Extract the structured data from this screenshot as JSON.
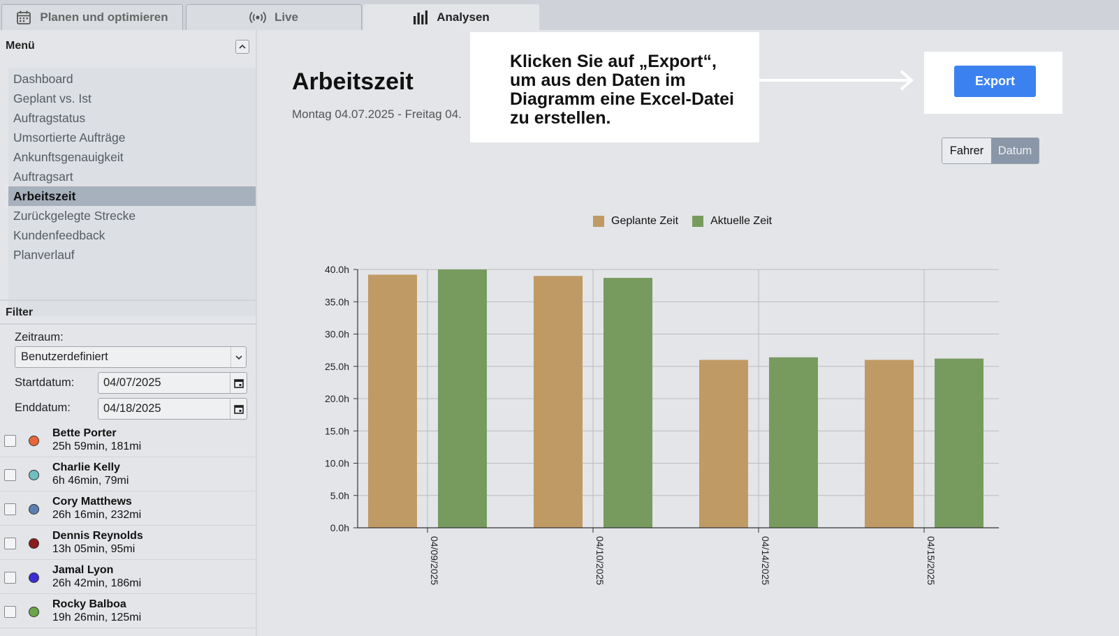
{
  "tabs": [
    {
      "label": "Planen und optimieren",
      "icon": "calendar-icon",
      "active": false
    },
    {
      "label": "Live",
      "icon": "broadcast-icon",
      "active": false
    },
    {
      "label": "Analysen",
      "icon": "bar-chart-icon",
      "active": true
    }
  ],
  "sidebar": {
    "menu_title": "Menü",
    "menu_items": [
      {
        "label": "Dashboard"
      },
      {
        "label": "Geplant vs. Ist"
      },
      {
        "label": "Auftragstatus"
      },
      {
        "label": "Umsortierte Aufträge"
      },
      {
        "label": "Ankunftsgenauigkeit"
      },
      {
        "label": "Auftragsart"
      },
      {
        "label": "Arbeitszeit",
        "active": true
      },
      {
        "label": "Zurückgelegte Strecke"
      },
      {
        "label": "Kundenfeedback"
      },
      {
        "label": "Planverlauf"
      }
    ],
    "filter_title": "Filter",
    "period_label": "Zeitraum:",
    "period_value": "Benutzerdefiniert",
    "start_label": "Startdatum:",
    "start_value": "04/07/2025",
    "end_label": "Enddatum:",
    "end_value": "04/18/2025",
    "drivers": [
      {
        "name": "Bette Porter",
        "stats": "25h 59min, 181mi",
        "color": "#e8673a"
      },
      {
        "name": "Charlie Kelly",
        "stats": "6h 46min, 79mi",
        "color": "#6fbfbf"
      },
      {
        "name": "Cory Matthews",
        "stats": "26h 16min, 232mi",
        "color": "#5b7fb0"
      },
      {
        "name": "Dennis Reynolds",
        "stats": "13h 05min, 95mi",
        "color": "#8b1d1d"
      },
      {
        "name": "Jamal Lyon",
        "stats": "26h 42min, 186mi",
        "color": "#3a2fd0"
      },
      {
        "name": "Rocky Balboa",
        "stats": "19h 26min, 125mi",
        "color": "#6aa54a"
      }
    ]
  },
  "main": {
    "title": "Arbeitszeit",
    "subtitle": "Montag 04.07.2025 - Freitag 04.",
    "callout_lines": [
      "Klicken Sie auf „Export“,",
      "um aus den Daten im",
      "Diagramm eine Excel-Datei",
      "zu erstellen."
    ],
    "export_label": "Export",
    "toggle": {
      "left": "Fahrer",
      "right": "Datum",
      "selected": "Datum"
    }
  },
  "colors": {
    "planned": "#c09a64",
    "actual": "#779b5f",
    "accent": "#3b82f0"
  },
  "chart_data": {
    "type": "bar",
    "categories": [
      "04/09/2025",
      "04/10/2025",
      "04/14/2025",
      "04/15/2025"
    ],
    "series": [
      {
        "name": "Geplante Zeit",
        "values": [
          39.2,
          39.0,
          26.0,
          26.0
        ]
      },
      {
        "name": "Aktuelle Zeit",
        "values": [
          40.0,
          38.7,
          26.4,
          26.2
        ]
      }
    ],
    "yticks": [
      "0.0h",
      "5.0h",
      "10.0h",
      "15.0h",
      "20.0h",
      "25.0h",
      "30.0h",
      "35.0h",
      "40.0h"
    ],
    "ylim": [
      0,
      40
    ],
    "grid": true,
    "legend": "top-center"
  }
}
